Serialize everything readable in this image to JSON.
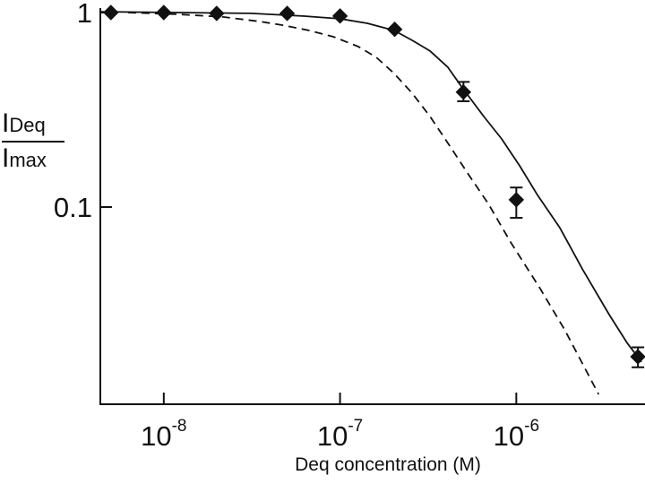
{
  "figure": {
    "background": "#ffffff",
    "ink": "#111111"
  },
  "chart_data": {
    "type": "scatter",
    "subtype": "log-log dose-response curve with fit and reference curves",
    "xlabel": "Deq concentration (M)",
    "ylabel": {
      "numerator": "I",
      "numerator_sub": "Deq",
      "denominator": "I",
      "denominator_sub": "max"
    },
    "x_scale": "log",
    "y_scale": "log",
    "x_range_log10": [
      -8.36,
      -5.28
    ],
    "y_range": [
      0.0097,
      1.055
    ],
    "grid": false,
    "legend": "none",
    "x_ticks": [
      {
        "base": "10",
        "exp": "-8",
        "log10": -8
      },
      {
        "base": "10",
        "exp": "-7",
        "log10": -7
      },
      {
        "base": "10",
        "exp": "-6",
        "log10": -6
      }
    ],
    "y_ticks": [
      {
        "label": "1",
        "value": 1
      },
      {
        "label": "0.1",
        "value": 0.1
      }
    ],
    "points": [
      {
        "conc_M": 5e-09,
        "log10_conc": -8.3,
        "value": 1.0,
        "err_hi": null,
        "err_lo": null
      },
      {
        "conc_M": 1e-08,
        "log10_conc": -8.0,
        "value": 1.0,
        "err_hi": null,
        "err_lo": null
      },
      {
        "conc_M": 2e-08,
        "log10_conc": -7.7,
        "value": 0.99,
        "err_hi": null,
        "err_lo": null
      },
      {
        "conc_M": 5e-08,
        "log10_conc": -7.3,
        "value": 0.99,
        "err_hi": null,
        "err_lo": null
      },
      {
        "conc_M": 1e-07,
        "log10_conc": -7.0,
        "value": 0.96,
        "err_hi": null,
        "err_lo": null
      },
      {
        "conc_M": 2e-07,
        "log10_conc": -6.69,
        "value": 0.82,
        "err_hi": null,
        "err_lo": null
      },
      {
        "conc_M": 5e-07,
        "log10_conc": -6.3,
        "value": 0.39,
        "err_hi": 0.44,
        "err_lo": 0.35
      },
      {
        "conc_M": 1e-06,
        "log10_conc": -6.0,
        "value": 0.109,
        "err_hi": 0.126,
        "err_lo": 0.088
      },
      {
        "conc_M": 5e-06,
        "log10_conc": -5.31,
        "value": 0.017,
        "err_hi": 0.019,
        "err_lo": 0.015
      }
    ],
    "curves": [
      {
        "name": "fit-curve-solid",
        "style": "solid",
        "x_log10": [
          -8.36,
          -7.913,
          -7.506,
          -7.201,
          -6.998,
          -6.845,
          -6.693,
          -6.591,
          -6.489,
          -6.388,
          -6.306,
          -6.184,
          -6.083,
          -5.981,
          -5.879,
          -5.752,
          -5.625,
          -5.473,
          -5.371,
          -5.29
        ],
        "values": [
          1.01,
          1.0,
          0.99,
          0.958,
          0.928,
          0.88,
          0.809,
          0.72,
          0.634,
          0.523,
          0.41,
          0.292,
          0.224,
          0.163,
          0.115,
          0.078,
          0.048,
          0.028,
          0.02,
          0.016
        ]
      },
      {
        "name": "reference-curve-dashed",
        "style": "dashed",
        "x_log10": [
          -8.203,
          -7.913,
          -7.659,
          -7.455,
          -7.328,
          -7.175,
          -7.038,
          -6.896,
          -6.794,
          -6.693,
          -6.591,
          -6.489,
          -6.388,
          -6.271,
          -6.159,
          -6.032,
          -5.864,
          -5.727,
          -5.625,
          -5.533
        ],
        "values": [
          1.0,
          0.979,
          0.948,
          0.899,
          0.862,
          0.809,
          0.751,
          0.668,
          0.588,
          0.486,
          0.385,
          0.292,
          0.213,
          0.147,
          0.104,
          0.066,
          0.038,
          0.0235,
          0.0157,
          0.0109
        ]
      }
    ]
  }
}
